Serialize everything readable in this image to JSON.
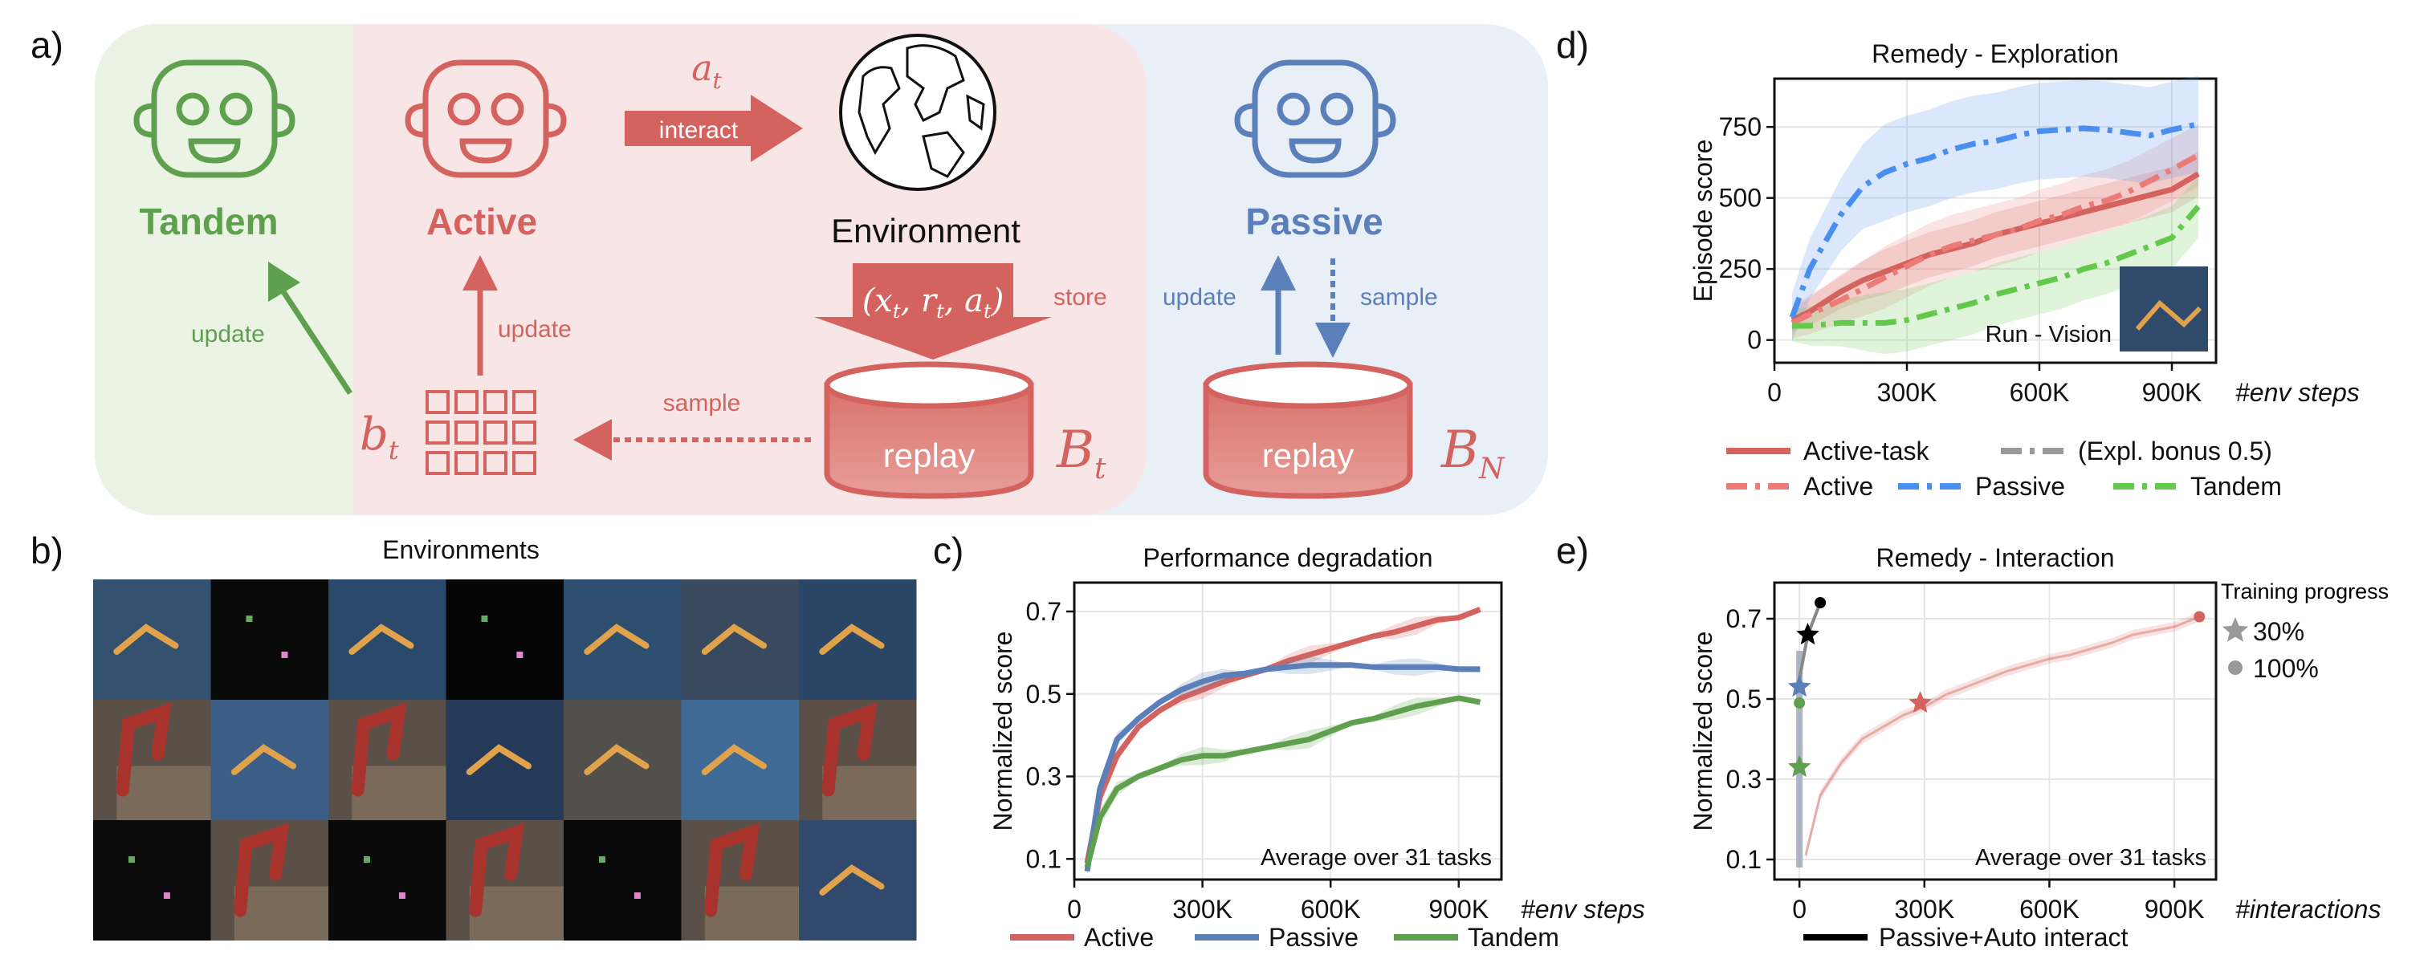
{
  "panel_labels": {
    "a": "a)",
    "b": "b)",
    "c": "c)",
    "d": "d)",
    "e": "e)"
  },
  "colors": {
    "tandem": "#5fa04e",
    "active": "#d4635f",
    "passive": "#5b7fb8",
    "active_dash": "#ec7b78",
    "passive_dash": "#4a8ef0",
    "tandem_dash": "#62c94b",
    "bonus": "#999999",
    "auto": "#000000"
  },
  "diagram": {
    "agents": {
      "tandem": "Tandem",
      "active": "Active",
      "passive": "Passive"
    },
    "environment": "Environment",
    "action": "a",
    "action_sub": "t",
    "interact": "interact",
    "store": "store",
    "tuple": "(x",
    "tuple_rest": ", r",
    "tuple_rest2": ", a",
    "tuple_end": ")",
    "sub_t": "t",
    "replay": "replay",
    "buffer": "B",
    "buffer_t_sub": "t",
    "buffer_n_sub": "N",
    "belief": "b",
    "belief_sub": "t",
    "update": "update",
    "sample": "sample",
    "icons": [
      "robot-icon",
      "globe-icon",
      "database-icon",
      "grid-icon"
    ]
  },
  "environments": {
    "title": "Environments"
  },
  "chart_data": [
    {
      "id": "c",
      "type": "line",
      "title": "Performance degradation",
      "xlabel": "#env steps",
      "ylabel": "Normalized score",
      "xlim": [
        0,
        1000000
      ],
      "ylim": [
        0.05,
        0.77
      ],
      "xticks": [
        0,
        300000,
        600000,
        900000
      ],
      "xtick_labels": [
        "0",
        "300K",
        "600K",
        "900K"
      ],
      "yticks": [
        0.1,
        0.3,
        0.5,
        0.7
      ],
      "ytick_labels": [
        "0.1",
        "0.3",
        "0.5",
        "0.7"
      ],
      "grid": true,
      "annotation": "Average over 31 tasks",
      "x": [
        30000,
        60000,
        100000,
        150000,
        200000,
        250000,
        300000,
        350000,
        400000,
        450000,
        500000,
        550000,
        600000,
        650000,
        700000,
        750000,
        800000,
        850000,
        900000,
        950000
      ],
      "series": [
        {
          "name": "Active",
          "style": "solid",
          "values": [
            0.09,
            0.25,
            0.35,
            0.42,
            0.46,
            0.49,
            0.51,
            0.53,
            0.545,
            0.56,
            0.58,
            0.595,
            0.61,
            0.625,
            0.64,
            0.65,
            0.665,
            0.68,
            0.685,
            0.705
          ]
        },
        {
          "name": "Passive",
          "style": "solid",
          "values": [
            0.07,
            0.27,
            0.39,
            0.44,
            0.48,
            0.51,
            0.53,
            0.545,
            0.55,
            0.56,
            0.565,
            0.57,
            0.57,
            0.57,
            0.565,
            0.565,
            0.565,
            0.565,
            0.56,
            0.56
          ]
        },
        {
          "name": "Tandem",
          "style": "solid",
          "values": [
            0.08,
            0.2,
            0.27,
            0.3,
            0.32,
            0.34,
            0.35,
            0.35,
            0.36,
            0.37,
            0.38,
            0.39,
            0.41,
            0.43,
            0.44,
            0.455,
            0.47,
            0.48,
            0.49,
            0.48
          ]
        }
      ],
      "legend": "bottom"
    },
    {
      "id": "d",
      "type": "line",
      "title": "Remedy - Exploration",
      "xlabel": "#env steps",
      "ylabel": "Episode score",
      "xlim": [
        0,
        1000000
      ],
      "ylim": [
        -80,
        920
      ],
      "xticks": [
        0,
        300000,
        600000,
        900000
      ],
      "xtick_labels": [
        "0",
        "300K",
        "600K",
        "900K"
      ],
      "yticks": [
        0,
        250,
        500,
        750
      ],
      "ytick_labels": [
        "0",
        "250",
        "500",
        "750"
      ],
      "grid": true,
      "annotation": "Run - Vision",
      "x": [
        40000,
        80000,
        150000,
        200000,
        250000,
        300000,
        350000,
        400000,
        450000,
        500000,
        550000,
        600000,
        650000,
        700000,
        750000,
        800000,
        850000,
        900000,
        960000
      ],
      "series": [
        {
          "name": "Active-task",
          "style": "solid",
          "values": [
            70,
            100,
            170,
            210,
            240,
            270,
            300,
            320,
            340,
            370,
            390,
            410,
            430,
            450,
            470,
            490,
            510,
            530,
            585
          ]
        },
        {
          "name": "Active",
          "style": "dashdot",
          "values": [
            60,
            90,
            140,
            180,
            220,
            260,
            300,
            330,
            350,
            370,
            390,
            420,
            440,
            470,
            490,
            520,
            560,
            600,
            650
          ]
        },
        {
          "name": "Passive",
          "style": "dashdot",
          "values": [
            80,
            250,
            440,
            540,
            590,
            620,
            640,
            670,
            690,
            700,
            720,
            735,
            740,
            745,
            740,
            730,
            720,
            740,
            760
          ]
        },
        {
          "name": "Tandem",
          "style": "dashdot",
          "values": [
            50,
            50,
            60,
            60,
            60,
            70,
            90,
            110,
            130,
            160,
            180,
            200,
            220,
            250,
            270,
            300,
            330,
            360,
            470
          ]
        }
      ],
      "legend_entries": [
        "Active-task",
        "(Expl. bonus 0.5)",
        "Active",
        "Passive",
        "Tandem"
      ],
      "legend": "bottom"
    },
    {
      "id": "e",
      "type": "scatter",
      "title": "Remedy - Interaction",
      "xlabel": "#interactions",
      "ylabel": "Normalized score",
      "xlim": [
        -60000,
        1000000
      ],
      "ylim": [
        0.05,
        0.79
      ],
      "xticks": [
        0,
        300000,
        600000,
        900000
      ],
      "xtick_labels": [
        "0",
        "300K",
        "600K",
        "900K"
      ],
      "yticks": [
        0.1,
        0.3,
        0.5,
        0.7
      ],
      "ytick_labels": [
        "0.1",
        "0.3",
        "0.5",
        "0.7"
      ],
      "grid": true,
      "annotation": "Average over 31 tasks",
      "legend_title": "Training progress",
      "legend_markers": [
        {
          "marker": "star",
          "label": "30%"
        },
        {
          "marker": "circle",
          "label": "100%"
        }
      ],
      "active_curve": {
        "x": [
          15000,
          50000,
          100000,
          150000,
          200000,
          250000,
          300000,
          350000,
          400000,
          450000,
          500000,
          550000,
          600000,
          650000,
          700000,
          750000,
          800000,
          850000,
          900000,
          960000
        ],
        "y": [
          0.11,
          0.26,
          0.34,
          0.4,
          0.43,
          0.46,
          0.48,
          0.51,
          0.53,
          0.55,
          0.57,
          0.585,
          0.6,
          0.61,
          0.625,
          0.64,
          0.66,
          0.67,
          0.68,
          0.705
        ]
      },
      "points": [
        {
          "series": "Active",
          "marker": "star",
          "x": 290000,
          "y": 0.49
        },
        {
          "series": "Active",
          "marker": "circle",
          "x": 960000,
          "y": 0.705
        },
        {
          "series": "Passive",
          "marker": "star",
          "x": 0,
          "y": 0.53
        },
        {
          "series": "Tandem",
          "marker": "star",
          "x": 0,
          "y": 0.33
        },
        {
          "series": "Tandem",
          "marker": "circle",
          "x": 0,
          "y": 0.49
        },
        {
          "series": "Passive+Auto interact",
          "marker": "star",
          "x": 20000,
          "y": 0.66
        },
        {
          "series": "Passive+Auto interact",
          "marker": "circle",
          "x": 50000,
          "y": 0.74
        }
      ],
      "legend_entries": [
        "Passive+Auto interact"
      ]
    }
  ]
}
